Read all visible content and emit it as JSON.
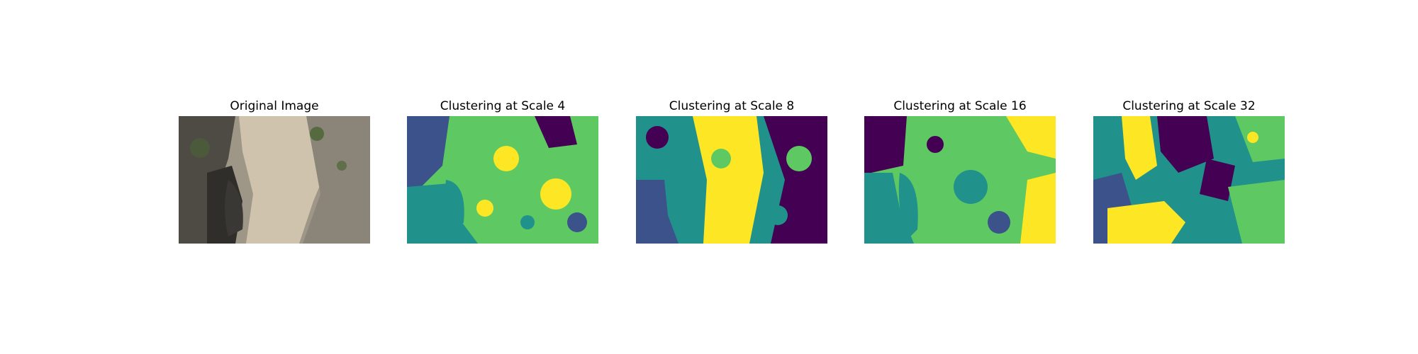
{
  "figure": {
    "panels": [
      {
        "title": "Original Image",
        "kind": "photo"
      },
      {
        "title": "Clustering at Scale 4",
        "kind": "cluster",
        "scale": 4
      },
      {
        "title": "Clustering at Scale 8",
        "kind": "cluster",
        "scale": 8
      },
      {
        "title": "Clustering at Scale 16",
        "kind": "cluster",
        "scale": 16
      },
      {
        "title": "Clustering at Scale 32",
        "kind": "cluster",
        "scale": 32
      }
    ],
    "palette": {
      "viridis": [
        "#440154",
        "#3b528b",
        "#21918c",
        "#5ec962",
        "#fde725"
      ],
      "photo": [
        "#2b2a28",
        "#5a564c",
        "#8c8577",
        "#b8ae9b",
        "#d6cab3",
        "#4a5a3a"
      ]
    }
  }
}
